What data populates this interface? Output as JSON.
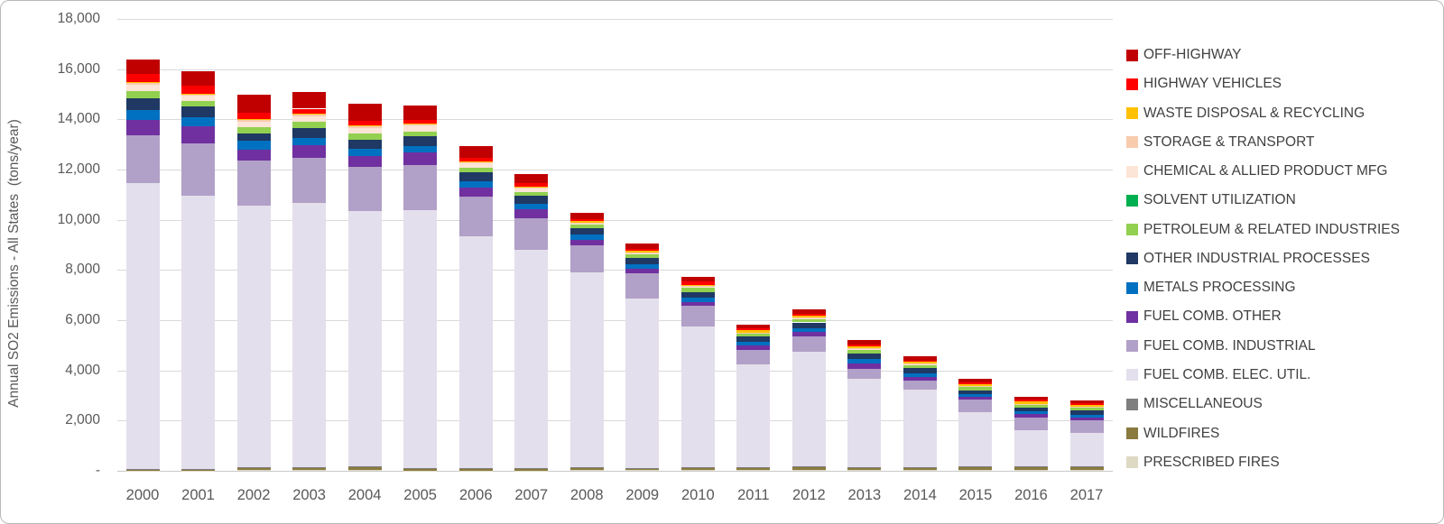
{
  "chart_data": {
    "type": "bar",
    "stacked": true,
    "title": "",
    "xlabel": "",
    "ylabel": "Annual SO2 Emissions - All States  (tons/year)",
    "ylim": [
      0,
      18000
    ],
    "ytick_step": 2000,
    "y_tick_labels": [
      "18,000",
      "16,000",
      "14,000",
      "12,000",
      "10,000",
      "8,000",
      "6,000",
      "4,000",
      "2,000",
      "-"
    ],
    "grid": "horizontal-only",
    "legend_position": "right",
    "legend_order": "reverse-of-stack (OFF-HIGHWAY listed first, PRESCRIBED FIRES last)",
    "categories": [
      "2000",
      "2001",
      "2002",
      "2003",
      "2004",
      "2005",
      "2006",
      "2007",
      "2008",
      "2009",
      "2010",
      "2011",
      "2012",
      "2013",
      "2014",
      "2015",
      "2016",
      "2017"
    ],
    "series": [
      {
        "name": "PRESCRIBED FIRES",
        "color": "#DDD9C3",
        "values": [
          10,
          10,
          25,
          20,
          20,
          15,
          15,
          15,
          20,
          20,
          30,
          30,
          50,
          30,
          30,
          25,
          25,
          30
        ]
      },
      {
        "name": "WILDFIRES",
        "color": "#8A7A3E",
        "values": [
          20,
          20,
          100,
          100,
          130,
          60,
          70,
          60,
          100,
          80,
          80,
          80,
          120,
          90,
          90,
          130,
          130,
          130
        ]
      },
      {
        "name": "MISCELLANEOUS",
        "color": "#7F7F7F",
        "values": [
          25,
          25,
          30,
          20,
          30,
          25,
          35,
          25,
          30,
          25,
          25,
          25,
          25,
          25,
          25,
          20,
          20,
          20
        ]
      },
      {
        "name": "FUEL COMB. ELEC. UTIL.",
        "color": "#E4DFEC",
        "values": [
          11420,
          10900,
          10390,
          10525,
          10160,
          10300,
          9215,
          8710,
          7770,
          6735,
          5625,
          4110,
          4540,
          3530,
          3075,
          2150,
          1440,
          1340
        ]
      },
      {
        "name": "FUEL COMB. INDUSTRIAL",
        "color": "#B1A0C7",
        "values": [
          1900,
          2100,
          1805,
          1795,
          1755,
          1780,
          1575,
          1250,
          1055,
          1000,
          800,
          575,
          620,
          400,
          365,
          510,
          520,
          475
        ]
      },
      {
        "name": "FUEL COMB. OTHER",
        "color": "#7030A0",
        "values": [
          600,
          660,
          445,
          520,
          450,
          520,
          385,
          365,
          235,
          175,
          170,
          165,
          180,
          185,
          160,
          95,
          120,
          115
        ]
      },
      {
        "name": "METALS PROCESSING",
        "color": "#0070C0",
        "values": [
          390,
          370,
          340,
          290,
          275,
          245,
          220,
          205,
          190,
          175,
          155,
          140,
          150,
          180,
          145,
          120,
          115,
          120
        ]
      },
      {
        "name": "OTHER INDUSTRIAL PROCESSES",
        "color": "#1F3864",
        "values": [
          480,
          420,
          315,
          365,
          365,
          400,
          385,
          340,
          260,
          260,
          245,
          215,
          225,
          245,
          195,
          165,
          155,
          180
        ]
      },
      {
        "name": "PETROLEUM & RELATED INDUSTRIES",
        "color": "#92D050",
        "values": [
          285,
          235,
          235,
          280,
          245,
          170,
          160,
          145,
          140,
          145,
          155,
          115,
          125,
          155,
          145,
          130,
          120,
          115
        ]
      },
      {
        "name": "SOLVENT UTILIZATION",
        "color": "#00B050",
        "values": [
          0,
          0,
          0,
          0,
          0,
          0,
          0,
          0,
          0,
          0,
          0,
          0,
          0,
          0,
          0,
          0,
          0,
          0
        ]
      },
      {
        "name": "CHEMICAL & ALLIED PRODUCT MFG",
        "color": "#FCE4D6",
        "values": [
          255,
          195,
          230,
          220,
          240,
          230,
          180,
          145,
          60,
          45,
          40,
          30,
          30,
          25,
          25,
          20,
          15,
          15
        ]
      },
      {
        "name": "STORAGE & TRANSPORT",
        "color": "#F8CBAD",
        "values": [
          60,
          55,
          60,
          60,
          55,
          55,
          40,
          30,
          35,
          25,
          35,
          25,
          25,
          20,
          20,
          15,
          15,
          15
        ]
      },
      {
        "name": "WASTE DISPOSAL & RECYCLING",
        "color": "#FFC000",
        "values": [
          40,
          30,
          30,
          25,
          30,
          30,
          30,
          30,
          60,
          80,
          50,
          85,
          85,
          60,
          60,
          70,
          85,
          60
        ]
      },
      {
        "name": "HIGHWAY VEHICLES",
        "color": "#FF0000",
        "values": [
          310,
          330,
          260,
          205,
          185,
          145,
          150,
          145,
          80,
          85,
          120,
          80,
          85,
          85,
          65,
          70,
          70,
          85
        ]
      },
      {
        "name": "OFF-HIGHWAY",
        "color": "#C00000",
        "values": [
          590,
          580,
          720,
          670,
          665,
          560,
          460,
          340,
          235,
          210,
          205,
          155,
          185,
          170,
          145,
          140,
          115,
          90
        ]
      }
    ],
    "totals": [
      16385,
      15930,
      14985,
      15095,
      14605,
      14535,
      12920,
      11805,
      10270,
      9060,
      7735,
      5830,
      6445,
      5200,
      4545,
      3660,
      2945,
      2790
    ]
  },
  "colors": {
    "background": "#ffffff",
    "gridline": "#d9d9d9",
    "axis_line": "#c9c9c9",
    "tick_text": "#595959",
    "legend_text": "#404040",
    "chart_border": "#b9b9b9"
  }
}
